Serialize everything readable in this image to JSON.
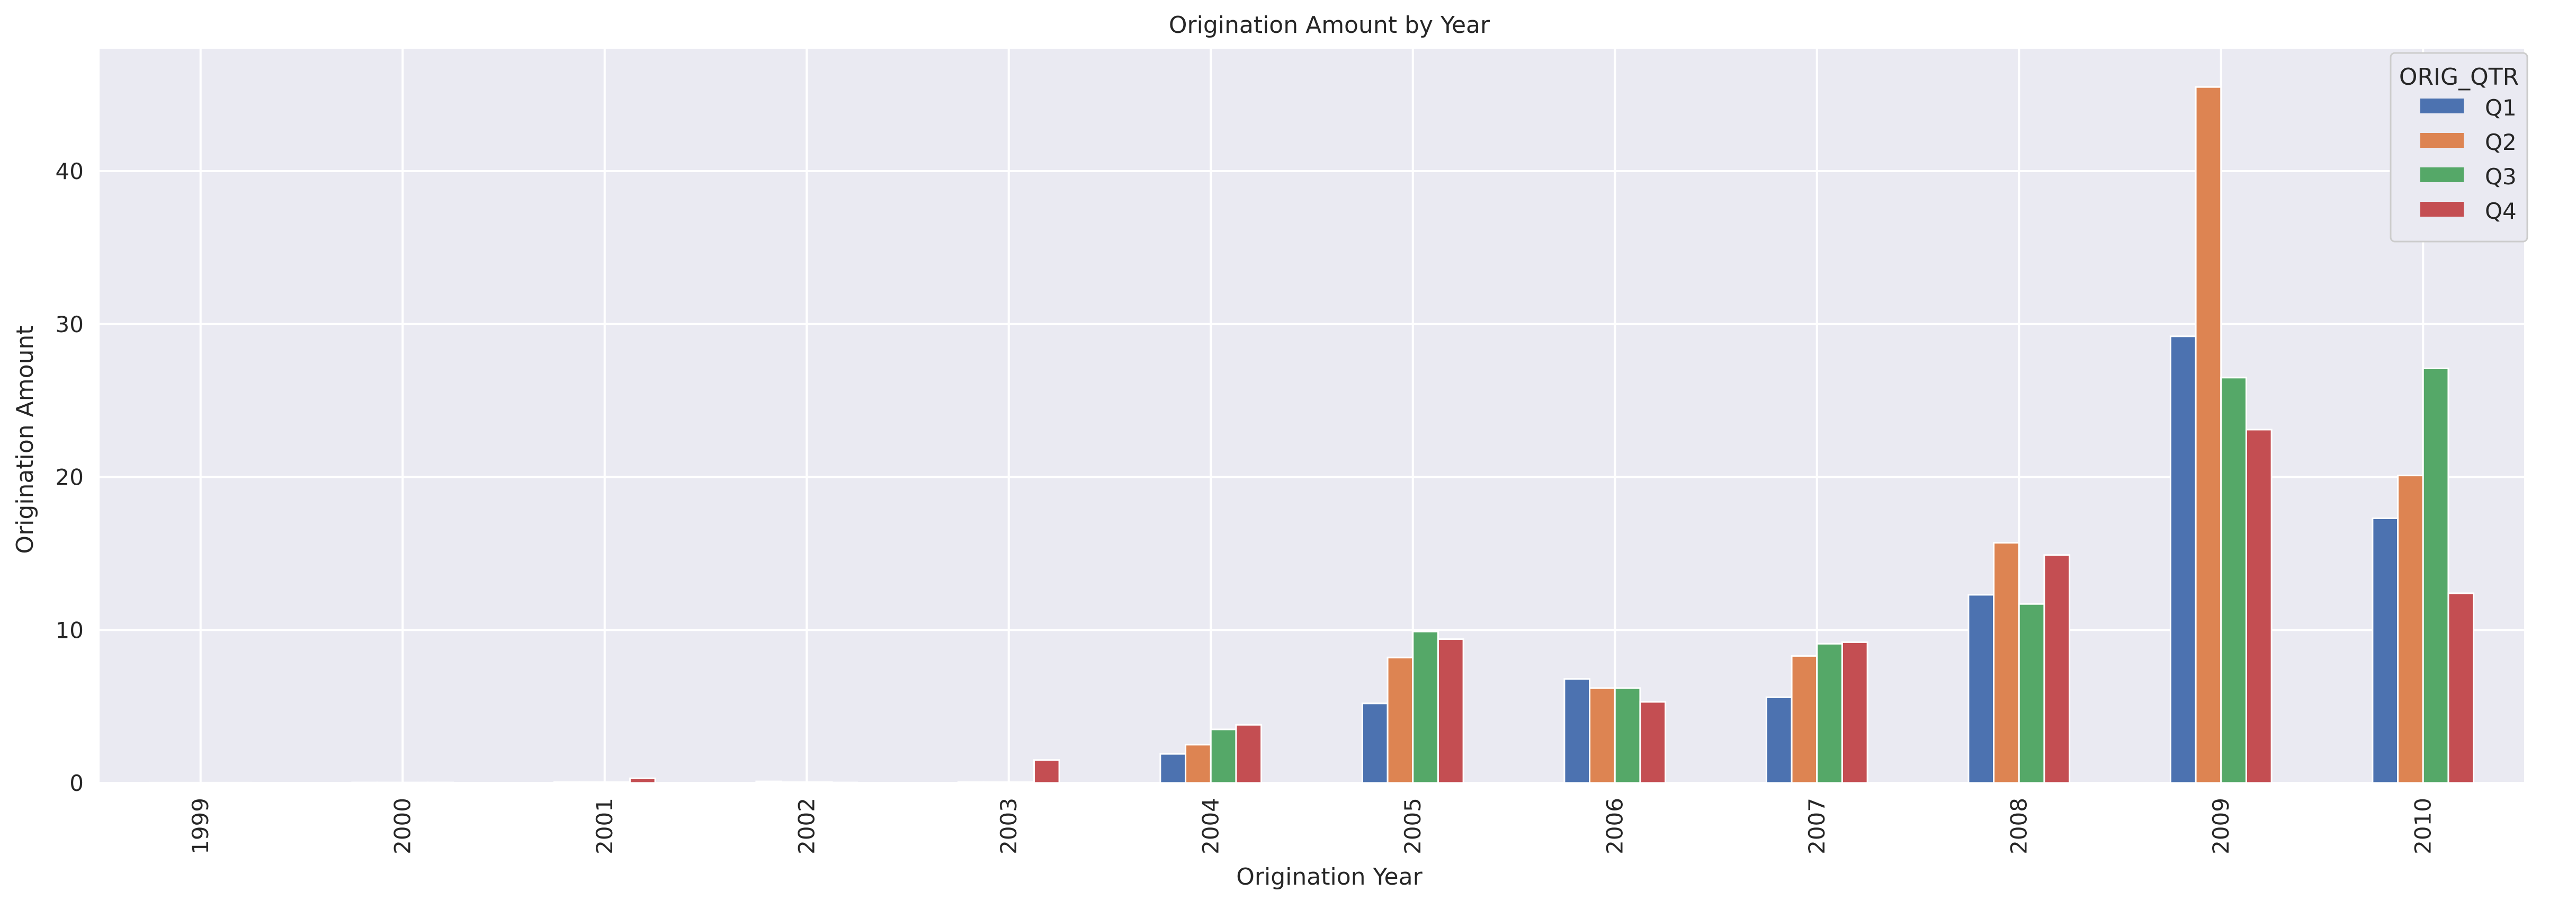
{
  "chart_data": {
    "type": "bar",
    "title": "Origination Amount by Year",
    "xlabel": "Origination Year",
    "ylabel": "Origination Amount",
    "categories": [
      "1999",
      "2000",
      "2001",
      "2002",
      "2003",
      "2004",
      "2005",
      "2006",
      "2007",
      "2008",
      "2009",
      "2010"
    ],
    "ylim": [
      0,
      48
    ],
    "yticks": [
      0,
      10,
      20,
      30,
      40
    ],
    "grid": true,
    "legend": {
      "title": "ORIG_QTR",
      "placement": "top-right"
    },
    "series": [
      {
        "name": "Q1",
        "color": "#4c72b0",
        "values": [
          0.02,
          0.03,
          0.05,
          0.1,
          0.05,
          1.9,
          5.2,
          6.8,
          5.6,
          12.3,
          29.2,
          17.3
        ]
      },
      {
        "name": "Q2",
        "color": "#dd8452",
        "values": [
          0.02,
          0.03,
          0.05,
          0.05,
          0.05,
          2.5,
          8.2,
          6.2,
          8.3,
          15.7,
          45.5,
          20.1
        ]
      },
      {
        "name": "Q3",
        "color": "#55a868",
        "values": [
          0.02,
          0.03,
          0.05,
          0.05,
          0.05,
          3.5,
          9.9,
          6.2,
          9.1,
          11.7,
          26.5,
          27.1
        ]
      },
      {
        "name": "Q4",
        "color": "#c44e52",
        "values": [
          0.02,
          0.03,
          0.3,
          0.03,
          1.5,
          3.8,
          9.4,
          5.3,
          9.2,
          14.9,
          23.1,
          12.4
        ]
      }
    ]
  }
}
